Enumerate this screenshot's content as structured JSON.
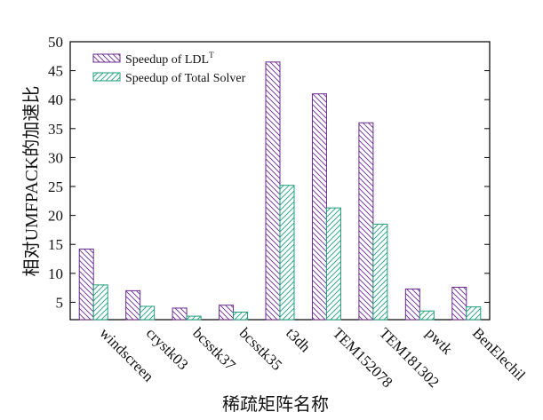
{
  "chart_data": {
    "type": "bar",
    "title": "",
    "xlabel": "稀疏矩阵名称",
    "ylabel": "相对UMFPACK的加速比",
    "ylim": [
      2,
      50
    ],
    "yticks": [
      5,
      10,
      15,
      20,
      25,
      30,
      35,
      40,
      45,
      50
    ],
    "grid": false,
    "legend_position": "top-left",
    "categories": [
      "windscreen",
      "crystk03",
      "bcsstk37",
      "bcsstk35",
      "t3dh",
      "TEM152078",
      "TEM181302",
      "pwtk",
      "BenElechil"
    ],
    "series": [
      {
        "name": "Speedup of LDL",
        "name_sup": "T",
        "color": "#6a2b8c",
        "hatch": "diagonal-down",
        "values": [
          14.2,
          7.0,
          4.0,
          4.5,
          46.5,
          41.0,
          36.0,
          7.3,
          7.6
        ]
      },
      {
        "name": "Speedup of Total Solver",
        "color": "#1f9e7a",
        "hatch": "diagonal-up",
        "values": [
          8.0,
          4.3,
          2.6,
          3.3,
          25.2,
          21.3,
          18.5,
          3.5,
          4.2
        ]
      }
    ]
  }
}
